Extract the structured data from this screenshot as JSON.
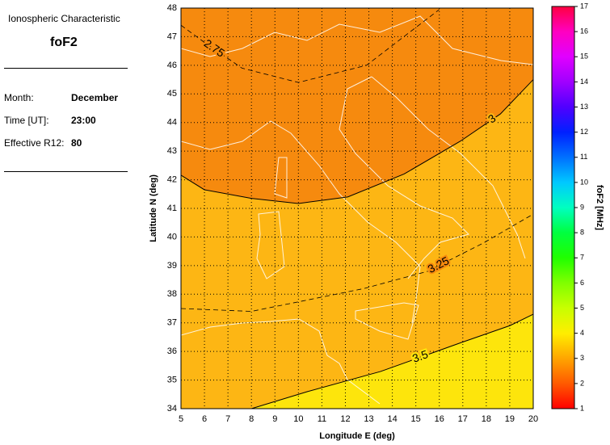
{
  "panel": {
    "subtitle": "Ionospheric Characteristic",
    "title": "foF2",
    "rows": [
      {
        "label": "Month:",
        "value": "December"
      },
      {
        "label": "Time [UT]:",
        "value": "23:00"
      },
      {
        "label": "Effective R12:",
        "value": "80"
      }
    ]
  },
  "chart_data": {
    "type": "contour",
    "xlabel": "Longitude E (deg)",
    "ylabel": "Latitude N (deg)",
    "xlim": [
      5,
      20
    ],
    "ylim": [
      34,
      48
    ],
    "xticks": [
      5,
      6,
      7,
      8,
      9,
      10,
      11,
      12,
      13,
      14,
      15,
      16,
      17,
      18,
      19,
      20
    ],
    "yticks": [
      34,
      35,
      36,
      37,
      38,
      39,
      40,
      41,
      42,
      43,
      44,
      45,
      46,
      47,
      48
    ],
    "grid": true,
    "fill": "#f68a0e",
    "contours": [
      {
        "level": 2.75,
        "style": "dashed",
        "lon": [
          5,
          6,
          7.6,
          10,
          12.9,
          16
        ],
        "lat": [
          47.4,
          46.8,
          45.9,
          45.4,
          46.0,
          47.95
        ]
      },
      {
        "level": 3,
        "style": "solid",
        "fill": "#fdb614",
        "lon": [
          5,
          6,
          8,
          10,
          12.1,
          14.5,
          16.9,
          18.6,
          20
        ],
        "lat": [
          42.16,
          41.65,
          41.35,
          41.17,
          41.4,
          42.2,
          43.35,
          44.3,
          45.5
        ]
      },
      {
        "level": 3.25,
        "style": "dashed",
        "lon": [
          5,
          8,
          10.4,
          12.8,
          15.5,
          17.9,
          20
        ],
        "lat": [
          37.5,
          37.4,
          37.8,
          38.2,
          38.8,
          39.8,
          40.8
        ]
      },
      {
        "level": 3.5,
        "style": "solid",
        "fill": "#fde50c",
        "lon": [
          8,
          10.4,
          13.5,
          16.9,
          19,
          20
        ],
        "lat": [
          34,
          34.6,
          35.3,
          36.3,
          36.9,
          37.3
        ]
      }
    ],
    "colorbar": {
      "label": "foF2 [MHz]",
      "lim": [
        1,
        17
      ],
      "ticks": [
        1,
        2,
        3,
        4,
        5,
        6,
        7,
        8,
        9,
        10,
        11,
        12,
        13,
        14,
        15,
        16,
        17
      ],
      "colors": [
        "#ff0000",
        "#ff5a00",
        "#ffa500",
        "#ffee00",
        "#c8ff00",
        "#80ff00",
        "#20ff00",
        "#00ff40",
        "#00ffc0",
        "#00c8ff",
        "#0070ff",
        "#0020ff",
        "#5000ff",
        "#a000ff",
        "#e000ff",
        "#ff00c0",
        "#ff0040"
      ]
    }
  }
}
